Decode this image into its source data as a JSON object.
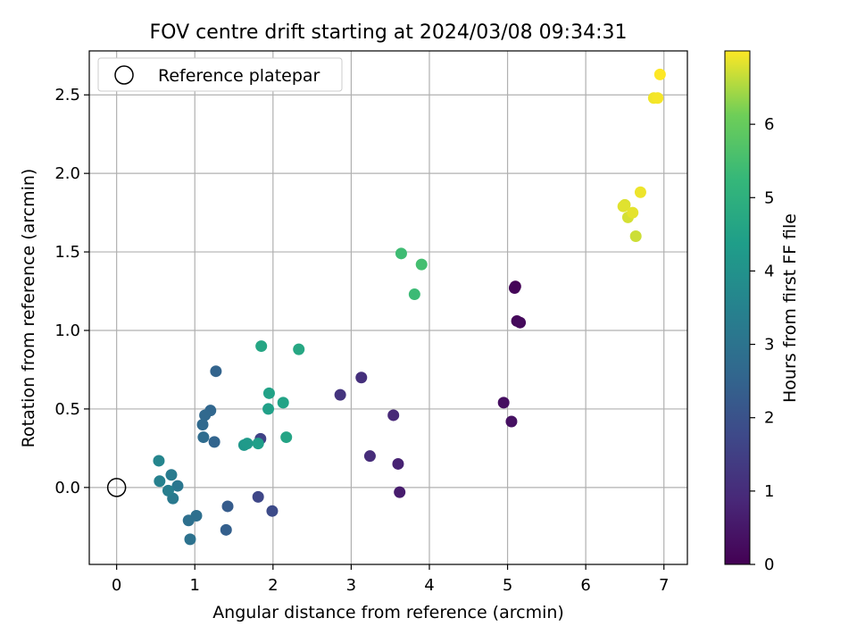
{
  "chart_data": {
    "type": "scatter",
    "title": "FOV centre drift starting at 2024/03/08 09:34:31",
    "xlabel": "Angular distance from reference (arcmin)",
    "ylabel": "Rotation from reference (arcmin)",
    "xlim": [
      -0.35,
      7.3
    ],
    "ylim": [
      -0.49,
      2.78
    ],
    "xticks": [
      0,
      1,
      2,
      3,
      4,
      5,
      6,
      7
    ],
    "yticks": [
      0.0,
      0.5,
      1.0,
      1.5,
      2.0,
      2.5
    ],
    "xtick_labels": [
      "0",
      "1",
      "2",
      "3",
      "4",
      "5",
      "6",
      "7"
    ],
    "ytick_labels": [
      "0.0",
      "0.5",
      "1.0",
      "1.5",
      "2.0",
      "2.5"
    ],
    "grid": true,
    "legend": {
      "placement": "top-left",
      "entries": [
        {
          "label": "Reference platepar",
          "marker": "open-circle",
          "x": 0,
          "y": 0
        }
      ]
    },
    "colorbar": {
      "label": "Hours from first FF file",
      "range": [
        0,
        7.0
      ],
      "ticks": [
        0,
        1,
        2,
        3,
        4,
        5,
        6
      ],
      "tick_labels": [
        "0",
        "1",
        "2",
        "3",
        "4",
        "5",
        "6"
      ],
      "colormap": "viridis"
    },
    "points": [
      {
        "x": 5.1,
        "y": 1.28,
        "h": 0.05
      },
      {
        "x": 5.09,
        "y": 1.27,
        "h": 0.1
      },
      {
        "x": 5.12,
        "y": 1.06,
        "h": 0.15
      },
      {
        "x": 5.16,
        "y": 1.05,
        "h": 0.2
      },
      {
        "x": 4.95,
        "y": 0.54,
        "h": 0.3
      },
      {
        "x": 5.05,
        "y": 0.42,
        "h": 0.35
      },
      {
        "x": 3.62,
        "y": -0.03,
        "h": 0.6
      },
      {
        "x": 3.6,
        "y": 0.15,
        "h": 0.75
      },
      {
        "x": 3.54,
        "y": 0.46,
        "h": 0.9
      },
      {
        "x": 3.24,
        "y": 0.2,
        "h": 1.0
      },
      {
        "x": 3.13,
        "y": 0.7,
        "h": 1.1
      },
      {
        "x": 2.86,
        "y": 0.59,
        "h": 1.2
      },
      {
        "x": 1.84,
        "y": 0.31,
        "h": 1.6
      },
      {
        "x": 1.81,
        "y": -0.06,
        "h": 1.7
      },
      {
        "x": 1.99,
        "y": -0.15,
        "h": 1.8
      },
      {
        "x": 1.42,
        "y": -0.12,
        "h": 2.3
      },
      {
        "x": 1.4,
        "y": -0.27,
        "h": 2.4
      },
      {
        "x": 1.27,
        "y": 0.74,
        "h": 2.5
      },
      {
        "x": 1.25,
        "y": 0.29,
        "h": 2.55
      },
      {
        "x": 1.2,
        "y": 0.49,
        "h": 2.6
      },
      {
        "x": 1.13,
        "y": 0.46,
        "h": 2.65
      },
      {
        "x": 1.1,
        "y": 0.4,
        "h": 2.7
      },
      {
        "x": 1.11,
        "y": 0.32,
        "h": 2.75
      },
      {
        "x": 1.02,
        "y": -0.18,
        "h": 2.85
      },
      {
        "x": 0.92,
        "y": -0.21,
        "h": 2.9
      },
      {
        "x": 0.94,
        "y": -0.33,
        "h": 2.95
      },
      {
        "x": 0.78,
        "y": 0.01,
        "h": 3.1
      },
      {
        "x": 0.72,
        "y": -0.07,
        "h": 3.2
      },
      {
        "x": 0.7,
        "y": 0.08,
        "h": 3.25
      },
      {
        "x": 0.66,
        "y": -0.02,
        "h": 3.35
      },
      {
        "x": 0.55,
        "y": 0.04,
        "h": 3.45
      },
      {
        "x": 0.54,
        "y": 0.17,
        "h": 3.6
      },
      {
        "x": 1.63,
        "y": 0.27,
        "h": 4.2
      },
      {
        "x": 1.67,
        "y": 0.28,
        "h": 4.25
      },
      {
        "x": 1.81,
        "y": 0.28,
        "h": 4.4
      },
      {
        "x": 1.94,
        "y": 0.5,
        "h": 4.45
      },
      {
        "x": 1.95,
        "y": 0.6,
        "h": 4.5
      },
      {
        "x": 2.13,
        "y": 0.54,
        "h": 4.55
      },
      {
        "x": 2.17,
        "y": 0.32,
        "h": 4.6
      },
      {
        "x": 1.85,
        "y": 0.9,
        "h": 4.65
      },
      {
        "x": 2.33,
        "y": 0.88,
        "h": 4.7
      },
      {
        "x": 3.81,
        "y": 1.23,
        "h": 5.35
      },
      {
        "x": 3.64,
        "y": 1.49,
        "h": 5.4
      },
      {
        "x": 3.9,
        "y": 1.42,
        "h": 5.5
      },
      {
        "x": 6.64,
        "y": 1.6,
        "h": 6.7
      },
      {
        "x": 6.54,
        "y": 1.72,
        "h": 6.75
      },
      {
        "x": 6.5,
        "y": 1.8,
        "h": 6.8
      },
      {
        "x": 6.48,
        "y": 1.79,
        "h": 6.82
      },
      {
        "x": 6.6,
        "y": 1.75,
        "h": 6.85
      },
      {
        "x": 6.7,
        "y": 1.88,
        "h": 6.9
      },
      {
        "x": 6.87,
        "y": 2.48,
        "h": 6.92
      },
      {
        "x": 6.92,
        "y": 2.48,
        "h": 6.95
      },
      {
        "x": 6.95,
        "y": 2.63,
        "h": 7.0
      }
    ]
  }
}
